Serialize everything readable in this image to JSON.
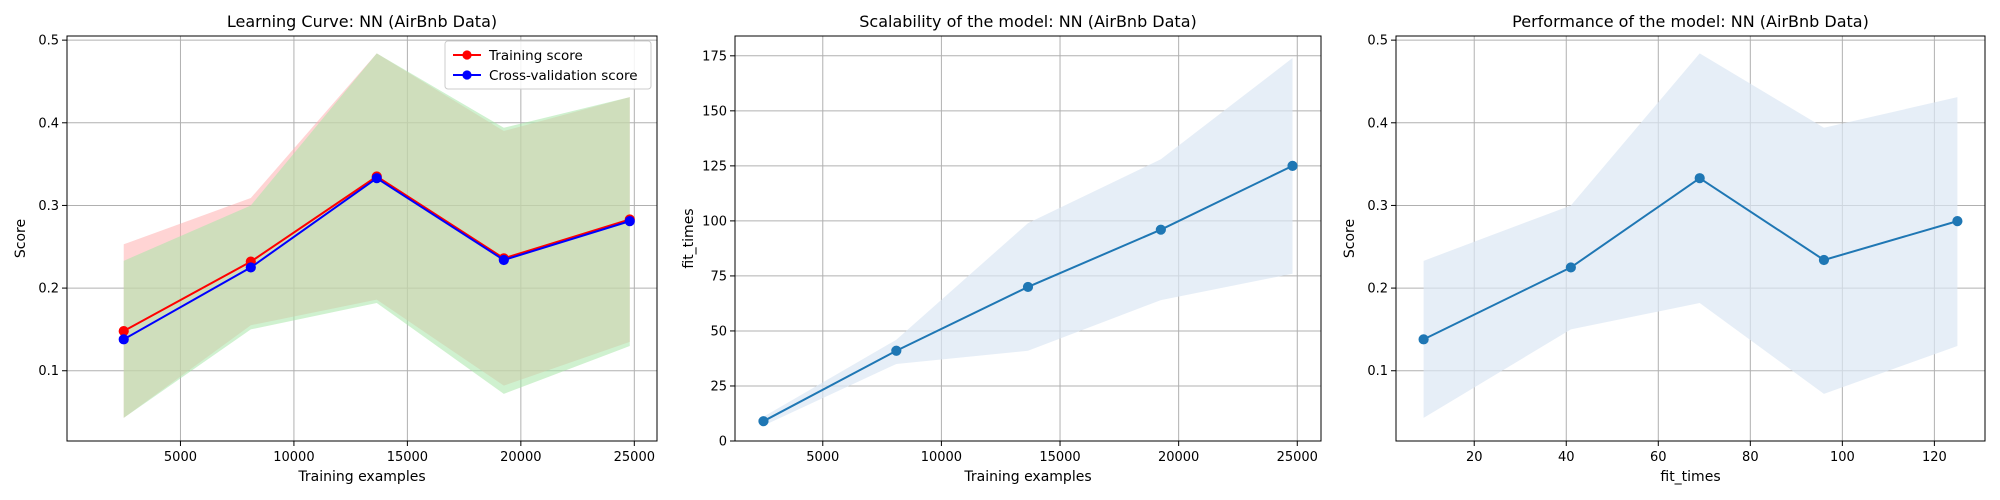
{
  "chart_data": [
    {
      "type": "line",
      "title": "Learning Curve: NN (AirBnb Data)",
      "xlabel": "Training examples",
      "ylabel": "Score",
      "xlim": [
        0,
        26000
      ],
      "ylim": [
        0.015,
        0.505
      ],
      "xticks": [
        5000,
        10000,
        15000,
        20000,
        25000
      ],
      "yticks": [
        0.1,
        0.2,
        0.3,
        0.4,
        0.5
      ],
      "grid": true,
      "legend": "top-right",
      "x": [
        2500,
        8100,
        13650,
        19250,
        24800
      ],
      "series": [
        {
          "name": "Training score",
          "color": "#ff0000",
          "values": [
            0.148,
            0.232,
            0.335,
            0.236,
            0.283
          ],
          "band_lower": [
            0.043,
            0.155,
            0.186,
            0.082,
            0.135
          ],
          "band_upper": [
            0.253,
            0.309,
            0.484,
            0.39,
            0.431
          ],
          "band_color": "#ffb0b0"
        },
        {
          "name": "Cross-validation score",
          "color": "#0000ff",
          "values": [
            0.138,
            0.225,
            0.333,
            0.234,
            0.281
          ],
          "band_lower": [
            0.043,
            0.15,
            0.182,
            0.072,
            0.13
          ],
          "band_upper": [
            0.233,
            0.3,
            0.484,
            0.394,
            0.431
          ],
          "band_color": "#a8e6a8"
        }
      ]
    },
    {
      "type": "line",
      "title": "Scalability of the model: NN (AirBnb Data)",
      "xlabel": "Training examples",
      "ylabel": "fit_times",
      "xlim": [
        1300,
        26000
      ],
      "ylim": [
        0,
        184
      ],
      "xticks": [
        5000,
        10000,
        15000,
        20000,
        25000
      ],
      "yticks": [
        0,
        25,
        50,
        75,
        100,
        125,
        150,
        175
      ],
      "grid": true,
      "x": [
        2500,
        8100,
        13650,
        19250,
        24800
      ],
      "series": [
        {
          "color": "#1f77b4",
          "values": [
            9,
            41,
            70,
            96,
            125
          ],
          "band_lower": [
            7,
            35,
            41,
            64,
            76
          ],
          "band_upper": [
            11,
            46,
            99,
            128,
            174
          ],
          "band_color": "#dbe7f3"
        }
      ]
    },
    {
      "type": "line",
      "title": "Performance of the model: NN (AirBnb Data)",
      "xlabel": "fit_times",
      "ylabel": "Score",
      "xlim": [
        3,
        131
      ],
      "ylim": [
        0.015,
        0.505
      ],
      "xticks": [
        20,
        40,
        60,
        80,
        100,
        120
      ],
      "yticks": [
        0.1,
        0.2,
        0.3,
        0.4,
        0.5
      ],
      "grid": true,
      "x": [
        9,
        41,
        69,
        96,
        125
      ],
      "series": [
        {
          "color": "#1f77b4",
          "values": [
            0.138,
            0.225,
            0.333,
            0.234,
            0.281
          ],
          "band_lower": [
            0.043,
            0.15,
            0.182,
            0.072,
            0.13
          ],
          "band_upper": [
            0.233,
            0.3,
            0.484,
            0.394,
            0.431
          ],
          "band_color": "#dbe7f3"
        }
      ]
    }
  ]
}
